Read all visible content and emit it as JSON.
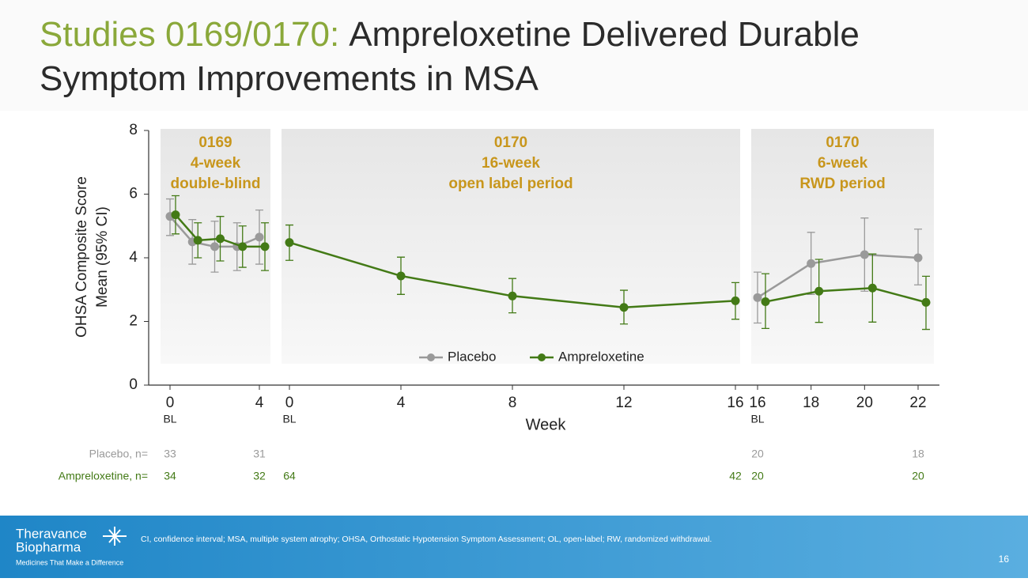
{
  "chart_data": {
    "type": "line",
    "title_prefix": "Studies 0169/0170:",
    "title": "Ampreloxetine Delivered Durable Symptom Improvements in MSA",
    "ylabel": [
      "OHSA Composite Score",
      "Mean (95% CI)"
    ],
    "xlabel": "Week",
    "ylim": [
      0,
      8
    ],
    "yticks": [
      0,
      2,
      4,
      6,
      8
    ],
    "series": [
      {
        "name": "Placebo",
        "color": "#9a9a9a"
      },
      {
        "name": "Ampreloxetine",
        "color": "#437a16"
      }
    ],
    "n_labels": [
      "Placebo, n=",
      "Ampreloxetine, n="
    ],
    "panels": [
      {
        "label": [
          "0169",
          "4-week",
          "double-blind"
        ],
        "baseline_label": "BL",
        "xlim": [
          0,
          4
        ],
        "xticks": [
          0,
          4
        ],
        "x": [
          0,
          1,
          2,
          3,
          4
        ],
        "series": [
          {
            "values": [
              5.3,
              4.5,
              4.35,
              4.35,
              4.65
            ],
            "ci_low": [
              4.7,
              3.8,
              3.55,
              3.6,
              3.8
            ],
            "ci_high": [
              5.85,
              5.2,
              5.15,
              5.1,
              5.5
            ]
          },
          {
            "values": [
              5.35,
              4.55,
              4.6,
              4.35,
              4.35
            ],
            "ci_low": [
              4.75,
              4.0,
              3.9,
              3.7,
              3.6
            ],
            "ci_high": [
              5.95,
              5.1,
              5.3,
              5.0,
              5.1
            ]
          }
        ],
        "n": [
          [
            33,
            31
          ],
          [
            34,
            32
          ]
        ]
      },
      {
        "label": [
          "0170",
          "16-week",
          "open label period"
        ],
        "baseline_label": "BL",
        "xlim": [
          0,
          16
        ],
        "xticks": [
          0,
          4,
          8,
          12,
          16
        ],
        "x": [
          0,
          4,
          8,
          12,
          16
        ],
        "series": [
          {
            "values": [
              null,
              null,
              null,
              null,
              null
            ],
            "ci_low": [
              null,
              null,
              null,
              null,
              null
            ],
            "ci_high": [
              null,
              null,
              null,
              null,
              null
            ]
          },
          {
            "values": [
              4.48,
              3.43,
              2.8,
              2.44,
              2.65
            ],
            "ci_low": [
              3.92,
              2.85,
              2.27,
              1.92,
              2.07
            ],
            "ci_high": [
              5.03,
              4.02,
              3.35,
              2.98,
              3.22
            ]
          }
        ],
        "n": [
          [
            null,
            null,
            null,
            null,
            null
          ],
          [
            64,
            null,
            null,
            null,
            42
          ]
        ]
      },
      {
        "label": [
          "0170",
          "6-week",
          "RWD period"
        ],
        "baseline_label": "BL",
        "xlim": [
          16,
          22
        ],
        "xticks": [
          16,
          18,
          20,
          22
        ],
        "x": [
          16,
          18,
          20,
          22
        ],
        "series": [
          {
            "values": [
              2.75,
              3.82,
              4.1,
              4.0
            ],
            "ci_low": [
              1.95,
              2.85,
              2.95,
              3.15
            ],
            "ci_high": [
              3.55,
              4.8,
              5.25,
              4.9
            ]
          },
          {
            "values": [
              2.62,
              2.95,
              3.05,
              2.6
            ],
            "ci_low": [
              1.78,
              1.97,
              1.98,
              1.75
            ],
            "ci_high": [
              3.5,
              3.95,
              4.12,
              3.42
            ]
          }
        ],
        "n": [
          [
            20,
            null,
            null,
            18
          ],
          [
            20,
            null,
            null,
            20
          ]
        ]
      }
    ]
  },
  "footer": {
    "logo_line1": "Theravance",
    "logo_line2": "Biopharma",
    "tagline": "Medicines That Make a Difference",
    "footnote": "CI, confidence interval; MSA, multiple system atrophy; OHSA, Orthostatic Hypotension Symptom Assessment; OL, open-label; RW, randomized withdrawal.",
    "page": "16"
  }
}
